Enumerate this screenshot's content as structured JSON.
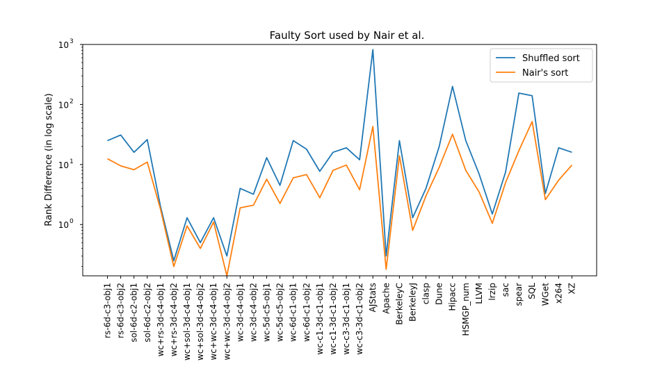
{
  "chart_data": {
    "type": "line",
    "title": "Faulty Sort used by Nair et al.",
    "xlabel": "",
    "ylabel": "Rank Difference (in log scale)",
    "yscale": "log",
    "ylim": [
      0.14,
      1000
    ],
    "y_ticks": [
      {
        "value": 1,
        "label": "10",
        "exp": "0"
      },
      {
        "value": 10,
        "label": "10",
        "exp": "1"
      },
      {
        "value": 100,
        "label": "10",
        "exp": "2"
      },
      {
        "value": 1000,
        "label": "10",
        "exp": "3"
      }
    ],
    "grid": false,
    "legend_position": "top-right",
    "categories": [
      "rs-6d-c3-obj1",
      "rs-6d-c3-obj2",
      "sol-6d-c2-obj1",
      "sol-6d-c2-obj2",
      "wc+rs-3d-c4-obj1",
      "wc+rs-3d-c4-obj2",
      "wc+sol-3d-c4-obj1",
      "wc+sol-3d-c4-obj2",
      "wc+wc-3d-c4-obj1",
      "wc+wc-3d-c4-obj2",
      "wc-3d-c4-obj1",
      "wc-3d-c4-obj2",
      "wc-5d-c5-obj1",
      "wc-5d-c5-obj2",
      "wc-6d-c1-obj1",
      "wc-6d-c1-obj2",
      "wc-c1-3d-c1-obj1",
      "wc-c1-3d-c1-obj2",
      "wc-c3-3d-c1-obj1",
      "wc-c3-3d-c1-obj2",
      "AJStats",
      "Apache",
      "BerkeleyC",
      "BerkeleyJ",
      "clasp",
      "Dune",
      "Hipacc",
      "HSMGP_num",
      "LLVM",
      "lrzip",
      "sac",
      "spear",
      "SQL",
      "WGet",
      "x264",
      "XZ"
    ],
    "series": [
      {
        "name": "Shuffled sort",
        "color": "#1f77b4",
        "values": [
          25,
          31,
          16,
          26,
          2.0,
          0.25,
          1.3,
          0.5,
          1.3,
          0.3,
          4.0,
          3.2,
          13,
          4.5,
          25,
          18,
          7.7,
          16,
          19,
          12,
          820,
          0.3,
          25,
          1.3,
          4.0,
          20,
          200,
          25,
          7.0,
          1.5,
          7.5,
          155,
          140,
          3.3,
          19,
          16
        ]
      },
      {
        "name": "Nair's sort",
        "color": "#ff7f0e",
        "values": [
          12.5,
          9.5,
          8.2,
          11,
          1.8,
          0.2,
          0.95,
          0.4,
          1.1,
          0.14,
          1.9,
          2.1,
          5.7,
          2.25,
          6.0,
          6.8,
          2.8,
          8.0,
          9.8,
          3.8,
          43,
          0.18,
          14,
          0.8,
          3.0,
          9.0,
          32,
          8.0,
          3.5,
          1.05,
          5.0,
          17,
          52,
          2.6,
          5.5,
          9.8
        ]
      }
    ]
  }
}
